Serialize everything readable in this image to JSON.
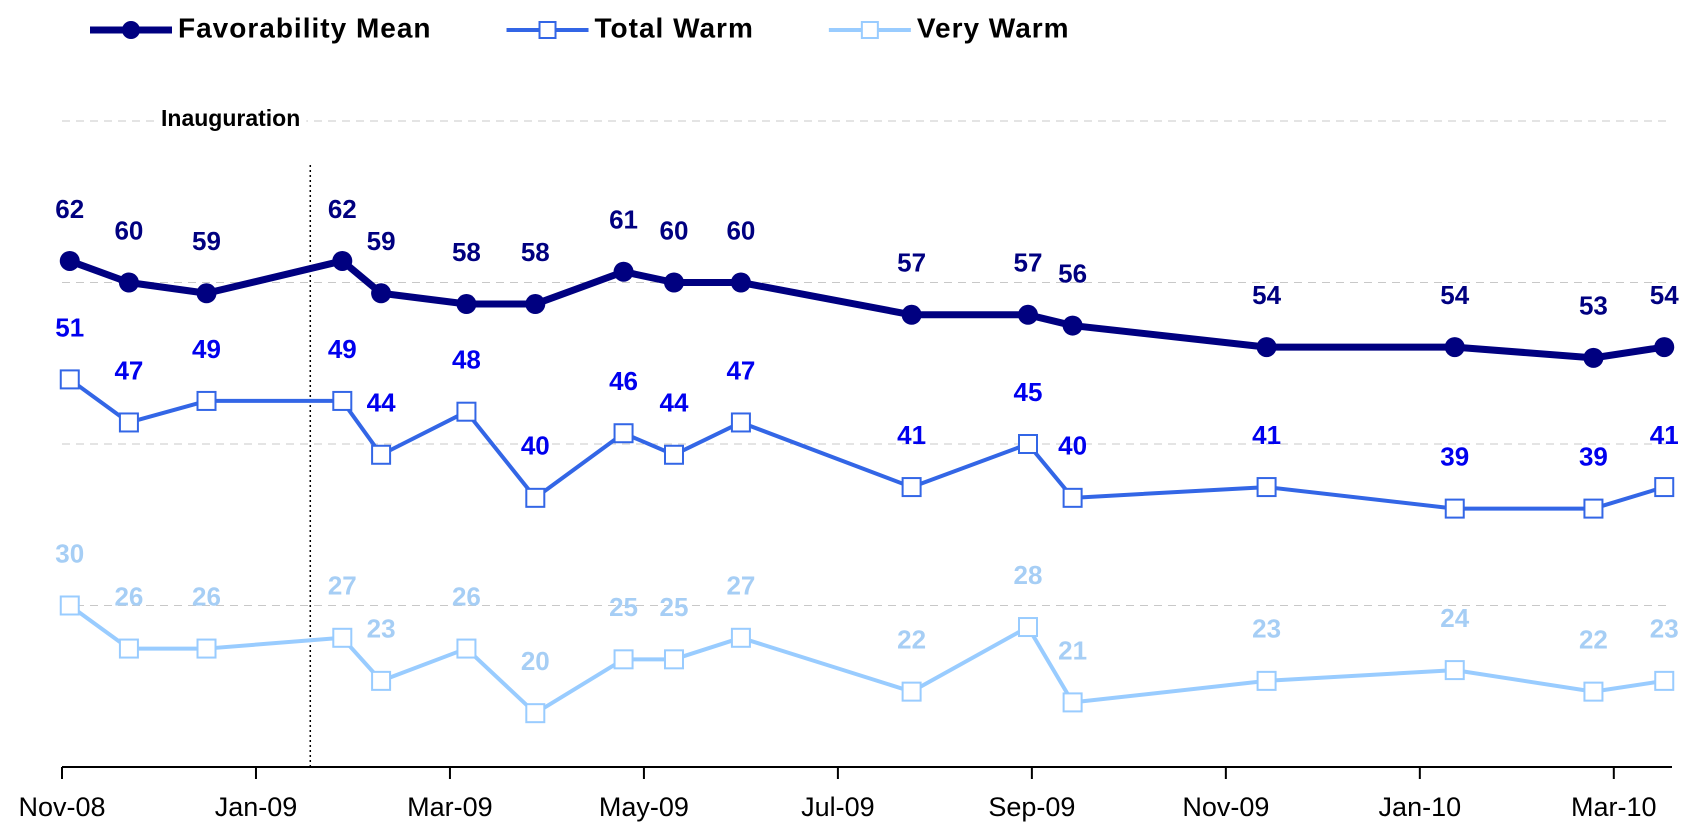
{
  "chart_data": {
    "type": "line",
    "x": [
      0.08,
      0.69,
      1.49,
      2.89,
      3.29,
      4.17,
      4.88,
      5.79,
      6.31,
      7.0,
      8.76,
      9.96,
      10.42,
      12.42,
      14.36,
      15.79,
      16.52
    ],
    "series": [
      {
        "name": "Favorability Mean",
        "color": "#000080",
        "label_color": "#000080",
        "marker": "circle",
        "values": [
          62,
          60,
          59,
          62,
          59,
          58,
          58,
          61,
          60,
          60,
          57,
          57,
          56,
          54,
          54,
          53,
          54
        ]
      },
      {
        "name": "Total Warm",
        "color": "#3366e6",
        "label_color": "#0000ee",
        "marker": "square",
        "values": [
          51,
          47,
          49,
          49,
          44,
          48,
          40,
          46,
          44,
          47,
          41,
          45,
          40,
          41,
          39,
          39,
          41
        ]
      },
      {
        "name": "Very Warm",
        "color": "#99ccff",
        "label_color": "#a6cef5",
        "marker": "square",
        "values": [
          30,
          26,
          26,
          27,
          23,
          26,
          20,
          25,
          25,
          27,
          22,
          28,
          21,
          23,
          24,
          22,
          23
        ]
      }
    ],
    "xlim": [
      0,
      16.6
    ],
    "xticks": [
      {
        "value": 0,
        "label": "Nov-08"
      },
      {
        "value": 2,
        "label": "Jan-09"
      },
      {
        "value": 4,
        "label": "Mar-09"
      },
      {
        "value": 6,
        "label": "May-09"
      },
      {
        "value": 8,
        "label": "Jul-09"
      },
      {
        "value": 10,
        "label": "Sep-09"
      },
      {
        "value": 12,
        "label": "Nov-09"
      },
      {
        "value": 14,
        "label": "Jan-10"
      },
      {
        "value": 16,
        "label": "Mar-10"
      }
    ],
    "ylim": [
      15,
      75
    ],
    "yticks": [
      30,
      45,
      60,
      75
    ],
    "grid": true,
    "legend": "top",
    "annotations": [
      {
        "text": "Inauguration",
        "x": 2.56
      }
    ]
  }
}
